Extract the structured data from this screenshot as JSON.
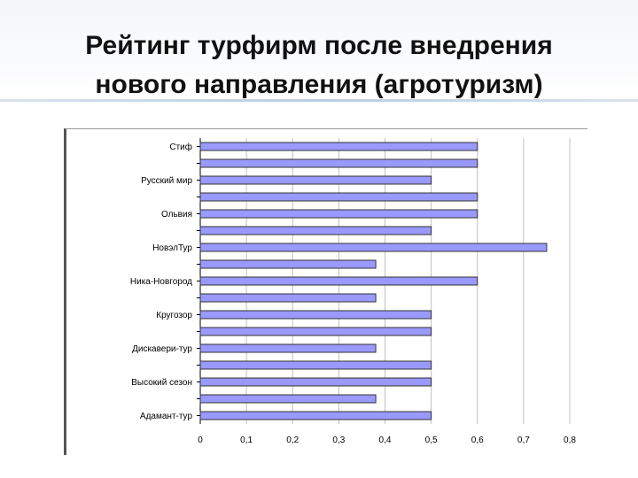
{
  "title": {
    "line1": "Рейтинг турфирм после внедрения",
    "line2": "нового направления (агротуризм)"
  },
  "colors": {
    "bar_fill": "#9999ff",
    "bar_stroke": "#333333",
    "grid": "#c0c0c0"
  },
  "chart_data": {
    "type": "bar",
    "orientation": "horizontal",
    "title": "",
    "xlabel": "",
    "ylabel": "",
    "xlim": [
      0,
      0.8
    ],
    "x_ticks": [
      "0",
      "0,1",
      "0,2",
      "0,3",
      "0,4",
      "0,5",
      "0,6",
      "0,7",
      "0,8"
    ],
    "grid": true,
    "legend": "none",
    "category_labels": [
      "Стиф",
      "Русский мир",
      "Ольвия",
      "НовэлТур",
      "Ника-Новгород",
      "Кругозор",
      "Дискавери-тур",
      "Высокий сезон",
      "Адамант-тур"
    ],
    "values": [
      0.6,
      0.6,
      0.5,
      0.6,
      0.6,
      0.5,
      0.75,
      0.38,
      0.6,
      0.38,
      0.5,
      0.5,
      0.38,
      0.5,
      0.5,
      0.38,
      0.5
    ]
  }
}
